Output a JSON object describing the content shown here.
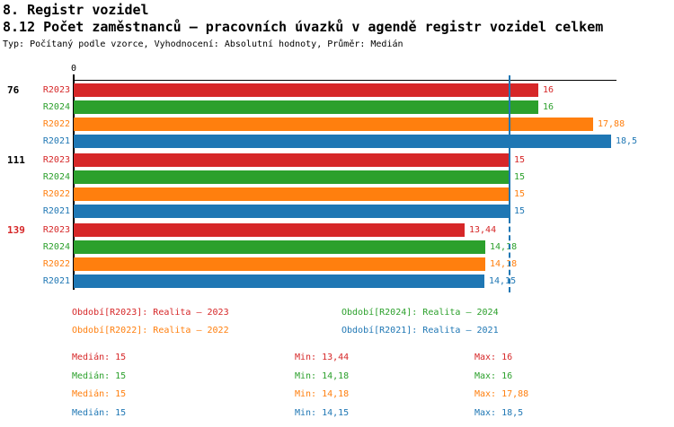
{
  "header": {
    "title": "8. Registr vozidel",
    "subtitle": "8.12 Počet zaměstnanců – pracovních úvazků v agendě registr vozidel celkem",
    "meta": "Typ: Počítaný podle vzorce, Vyhodnocení: Absolutní hodnoty, Průměr: Medián"
  },
  "colors": {
    "series": {
      "R2023": "#d62728",
      "R2024": "#2ca02c",
      "R2022": "#ff7f0e",
      "R2021": "#1f77b4"
    },
    "axis": "#000000",
    "median_line": "#1f77b4"
  },
  "chart_data": {
    "type": "bar",
    "orientation": "horizontal",
    "title": "8.12 Počet zaměstnanců – pracovních úvazků v agendě registr vozidel celkem",
    "xlabel": "",
    "ylabel": "",
    "xlim": [
      0,
      18.7
    ],
    "grid": false,
    "axis_zero_label": "0",
    "median_value": 15,
    "series_order": [
      "R2023",
      "R2024",
      "R2022",
      "R2021"
    ],
    "groups": [
      {
        "label": "76",
        "label_color": "#000000",
        "bars": [
          {
            "series": "R2023",
            "value": 16,
            "display": "16"
          },
          {
            "series": "R2024",
            "value": 16,
            "display": "16"
          },
          {
            "series": "R2022",
            "value": 17.88,
            "display": "17,88"
          },
          {
            "series": "R2021",
            "value": 18.5,
            "display": "18,5"
          }
        ]
      },
      {
        "label": "111",
        "label_color": "#000000",
        "bars": [
          {
            "series": "R2023",
            "value": 15,
            "display": "15"
          },
          {
            "series": "R2024",
            "value": 15,
            "display": "15"
          },
          {
            "series": "R2022",
            "value": 15,
            "display": "15"
          },
          {
            "series": "R2021",
            "value": 15,
            "display": "15"
          }
        ]
      },
      {
        "label": "139",
        "label_color": "#d62728",
        "bars": [
          {
            "series": "R2023",
            "value": 13.44,
            "display": "13,44"
          },
          {
            "series": "R2024",
            "value": 14.18,
            "display": "14,18"
          },
          {
            "series": "R2022",
            "value": 14.18,
            "display": "14,18"
          },
          {
            "series": "R2021",
            "value": 14.15,
            "display": "14,15"
          }
        ]
      }
    ]
  },
  "legend": [
    {
      "label": "Období[R2023]: Realita – 2023",
      "color": "#d62728"
    },
    {
      "label": "Období[R2024]: Realita – 2024",
      "color": "#2ca02c"
    },
    {
      "label": "Období[R2022]: Realita – 2022",
      "color": "#ff7f0e"
    },
    {
      "label": "Období[R2021]: Realita – 2021",
      "color": "#1f77b4"
    }
  ],
  "stats": [
    {
      "color": "#d62728",
      "median": "Medián: 15",
      "min": "Min: 13,44",
      "max": "Max: 16"
    },
    {
      "color": "#2ca02c",
      "median": "Medián: 15",
      "min": "Min: 14,18",
      "max": "Max: 16"
    },
    {
      "color": "#ff7f0e",
      "median": "Medián: 15",
      "min": "Min: 14,18",
      "max": "Max: 17,88"
    },
    {
      "color": "#1f77b4",
      "median": "Medián: 15",
      "min": "Min: 14,15",
      "max": "Max: 18,5"
    }
  ]
}
